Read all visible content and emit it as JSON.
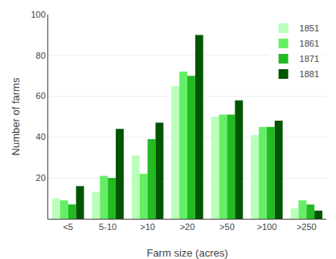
{
  "chart_data": {
    "type": "bar",
    "xlabel": "Farm size (acres)",
    "ylabel": "Number of farms",
    "categories": [
      "<5",
      "5-10",
      ">10",
      ">20",
      ">50",
      ">100",
      ">250"
    ],
    "series": [
      {
        "name": "1851",
        "color": "#bbffbb",
        "values": [
          10,
          13,
          31,
          65,
          50,
          41,
          5
        ]
      },
      {
        "name": "1861",
        "color": "#66ee66",
        "values": [
          9,
          21,
          22,
          72,
          51,
          45,
          9
        ]
      },
      {
        "name": "1871",
        "color": "#22bb22",
        "values": [
          7,
          20,
          39,
          70,
          51,
          45,
          7
        ]
      },
      {
        "name": "1881",
        "color": "#005500",
        "values": [
          16,
          44,
          47,
          90,
          58,
          48,
          4
        ]
      }
    ],
    "ylim": [
      0,
      100
    ],
    "yticks": [
      20,
      40,
      60,
      80,
      100
    ],
    "grid": true,
    "legend": "upper right"
  }
}
